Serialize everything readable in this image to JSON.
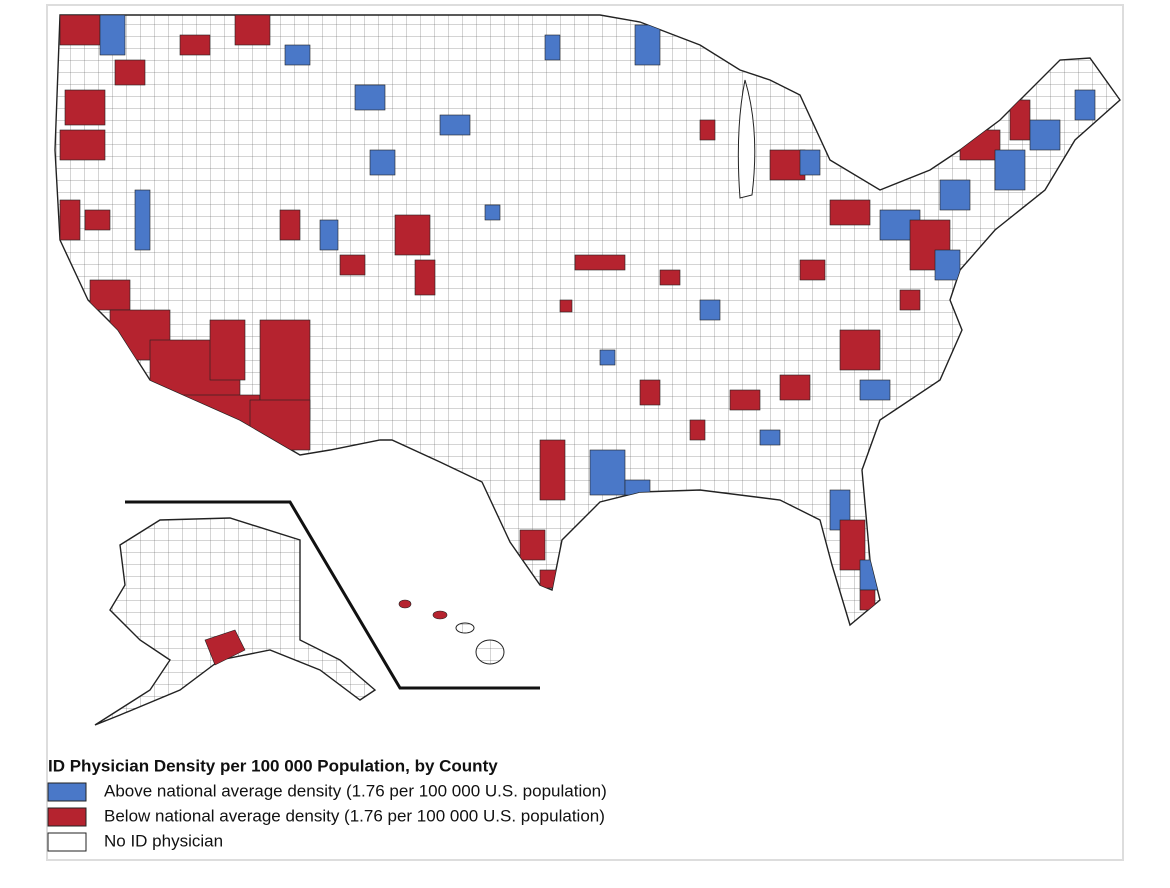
{
  "map": {
    "legend": {
      "title": "ID Physician Density per 100 000 Population, by County",
      "items": [
        {
          "label": "Above national average density (1.76 per 100 000 U.S. population)",
          "color": "#4a78c8"
        },
        {
          "label": "Below national average density (1.76 per 100 000 U.S. population)",
          "color": "#b5232f"
        },
        {
          "label": "No ID physician",
          "color": "#ffffff"
        }
      ]
    }
  }
}
